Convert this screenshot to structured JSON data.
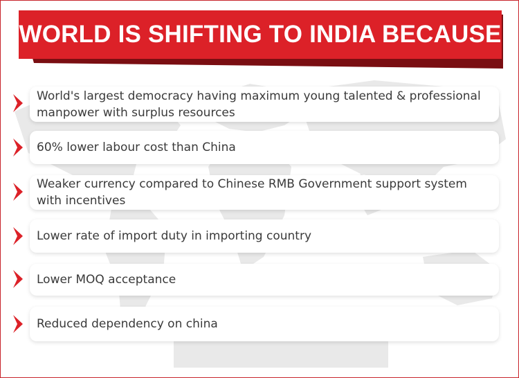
{
  "title": "WORLD IS SHIFTING TO INDIA BECAUSE",
  "items": [
    {
      "text": "World's largest democracy having maximum young talented & professional manpower with surplus resources"
    },
    {
      "text": " 60% lower labour cost than China"
    },
    {
      "text": "Weaker currency compared to Chinese RMB Government support system with incentives"
    },
    {
      "text": "Lower rate of import duty in importing country"
    },
    {
      "text": "Lower MOQ acceptance"
    },
    {
      "text": "Reduced dependency on china"
    }
  ],
  "colors": {
    "accent": "#dc2128",
    "dark_accent": "#8a0f14",
    "text": "#3a3a3a",
    "map": "#e6e6e6"
  },
  "icons": {
    "bullet": "chevron-right-icon"
  }
}
